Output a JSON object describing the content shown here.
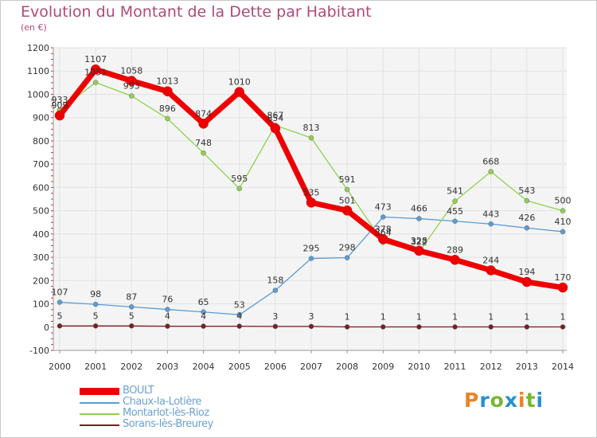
{
  "header": {
    "title": "Evolution du Montant de la Dette par Habitant",
    "subtitle": "(en €)"
  },
  "logo": {
    "text": "Proxiti",
    "colors": [
      "#e8842a",
      "#2a8fd2",
      "#7ab536",
      "#2a8fd2",
      "#e8842a",
      "#7ab536",
      "#2a8fd2"
    ]
  },
  "colors": {
    "boult": "#ee0000",
    "chaux": "#5b9bd5",
    "montarlot": "#8fd14f",
    "sorans": "#7a1f1f"
  },
  "chart_data": {
    "type": "line",
    "title": "Evolution du Montant de la Dette par Habitant",
    "subtitle": "(en €)",
    "xlabel": "",
    "ylabel": "",
    "ylim": [
      -100,
      1200
    ],
    "yticks": [
      -100,
      0,
      100,
      200,
      300,
      400,
      500,
      600,
      700,
      800,
      900,
      1000,
      1100,
      1200
    ],
    "categories": [
      "2000",
      "2001",
      "2002",
      "2003",
      "2004",
      "2005",
      "2006",
      "2007",
      "2008",
      "2009",
      "2010",
      "2011",
      "2012",
      "2013",
      "2014"
    ],
    "grid": true,
    "legend_position": "bottom-left",
    "series": [
      {
        "name": "BOULT",
        "color": "#ee0000",
        "width": 7,
        "values": [
          909,
          1107,
          1058,
          1013,
          874,
          1010,
          854,
          535,
          501,
          378,
          328,
          289,
          244,
          194,
          170
        ],
        "labels": [
          909,
          1107,
          1058,
          1013,
          874,
          1010,
          854,
          535,
          501,
          378,
          328,
          289,
          244,
          194,
          170
        ]
      },
      {
        "name": "Chaux-la-Lotière",
        "color": "#5b9bd5",
        "width": 1.3,
        "values": [
          107,
          98,
          87,
          76,
          65,
          53,
          158,
          295,
          298,
          473,
          466,
          455,
          443,
          426,
          410
        ],
        "labels": [
          107,
          98,
          87,
          76,
          65,
          53,
          158,
          295,
          298,
          473,
          466,
          455,
          443,
          426,
          410
        ]
      },
      {
        "name": "Montarlot-lès-Rioz",
        "color": "#8fd14f",
        "width": 1.3,
        "values": [
          933,
          1051,
          993,
          896,
          748,
          595,
          867,
          813,
          591,
          364,
          322,
          541,
          668,
          543,
          500
        ],
        "labels": [
          933,
          1051,
          993,
          896,
          748,
          595,
          867,
          813,
          591,
          364,
          322,
          541,
          668,
          543,
          500
        ]
      },
      {
        "name": "Sorans-lès-Breurey",
        "color": "#7a1f1f",
        "width": 1.3,
        "values": [
          5,
          5,
          5,
          4,
          4,
          4,
          3,
          3,
          1,
          1,
          1,
          1,
          1,
          1,
          1
        ],
        "labels": [
          5,
          5,
          5,
          4,
          4,
          4,
          3,
          3,
          1,
          1,
          1,
          1,
          1,
          1,
          1
        ]
      }
    ]
  }
}
